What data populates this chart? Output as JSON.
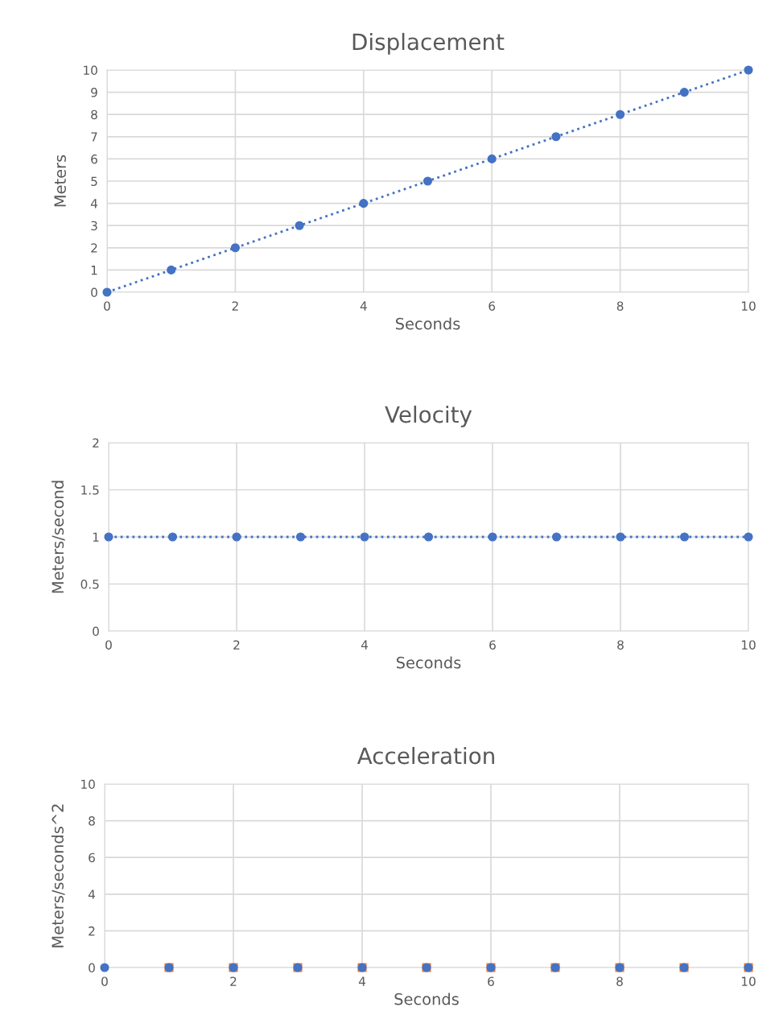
{
  "chart_data": [
    {
      "type": "line",
      "title": "Displacement",
      "xlabel": "Seconds",
      "ylabel": "Meters",
      "xlim": [
        0,
        10
      ],
      "xticks": [
        0,
        2,
        4,
        6,
        8,
        10
      ],
      "ylim": [
        0,
        10
      ],
      "yticks": [
        0,
        1,
        2,
        3,
        4,
        5,
        6,
        7,
        8,
        9,
        10
      ],
      "grid": true,
      "marker": "circle",
      "line_style": "dotted",
      "series": [
        {
          "color": "#4472c4",
          "x": [
            0,
            1,
            2,
            3,
            4,
            5,
            6,
            7,
            8,
            9,
            10
          ],
          "values": [
            0,
            1,
            2,
            3,
            4,
            5,
            6,
            7,
            8,
            9,
            10
          ]
        }
      ]
    },
    {
      "type": "line",
      "title": "Velocity",
      "xlabel": "Seconds",
      "ylabel": "Meters/second",
      "xlim": [
        0,
        10
      ],
      "xticks": [
        0,
        2,
        4,
        6,
        8,
        10
      ],
      "ylim": [
        0,
        2
      ],
      "yticks": [
        0,
        {
          "value": 0.5,
          "label": "0.5"
        },
        1,
        {
          "value": 1.5,
          "label": "1.5"
        },
        2
      ],
      "grid": true,
      "marker": "circle",
      "line_style": "dotted",
      "series": [
        {
          "color": "#4472c4",
          "x": [
            0,
            1,
            2,
            3,
            4,
            5,
            6,
            7,
            8,
            9,
            10
          ],
          "values": [
            1,
            1,
            1,
            1,
            1,
            1,
            1,
            1,
            1,
            1,
            1
          ]
        }
      ]
    },
    {
      "type": "scatter",
      "title": "Acceleration",
      "xlabel": "Seconds",
      "ylabel": "Meters/seconds^2",
      "xlim": [
        0,
        10
      ],
      "xticks": [
        0,
        2,
        4,
        6,
        8,
        10
      ],
      "ylim": [
        0,
        10
      ],
      "yticks": [
        0,
        2,
        4,
        6,
        8,
        10
      ],
      "grid": true,
      "series": [
        {
          "color": "#ed7d31",
          "marker": "square",
          "x": [
            1,
            2,
            3,
            4,
            5,
            6,
            7,
            8,
            9,
            10
          ],
          "values": [
            0,
            0,
            0,
            0,
            0,
            0,
            0,
            0,
            0,
            0
          ]
        },
        {
          "color": "#4472c4",
          "marker": "circle",
          "x": [
            0,
            1,
            2,
            3,
            4,
            5,
            6,
            7,
            8,
            9,
            10
          ],
          "values": [
            0,
            0,
            0,
            0,
            0,
            0,
            0,
            0,
            0,
            0,
            0
          ]
        }
      ]
    }
  ]
}
